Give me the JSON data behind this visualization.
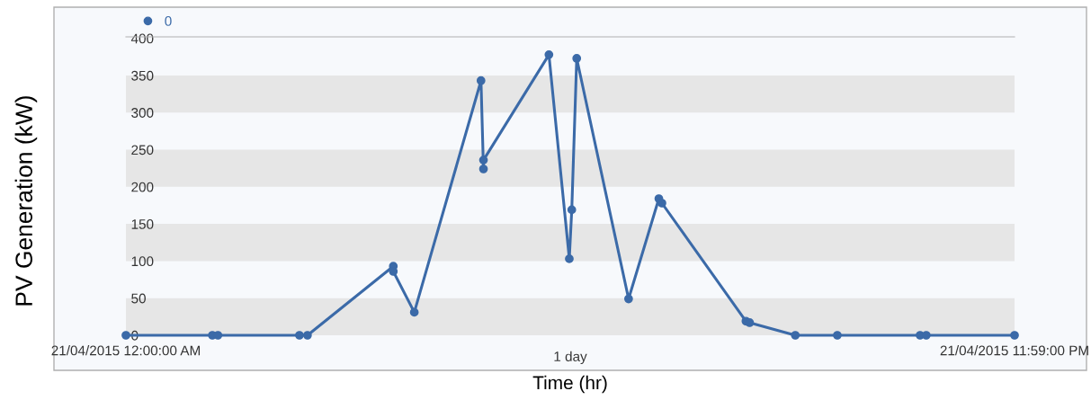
{
  "chart_data": {
    "type": "line",
    "xlabel": "Time (hr)",
    "ylabel": "PV Generation (kW)",
    "series": [
      {
        "name": "0",
        "color": "#3b6aa8",
        "x": [
          "2015-04-21T00:00",
          "2015-04-21T02:20",
          "2015-04-21T02:29",
          "2015-04-21T04:41",
          "2015-04-21T04:54",
          "2015-04-21T07:13",
          "2015-04-21T07:13",
          "2015-04-21T07:47",
          "2015-04-21T09:35",
          "2015-04-21T09:39",
          "2015-04-21T09:39",
          "2015-04-21T11:25",
          "2015-04-21T11:58",
          "2015-04-21T12:02",
          "2015-04-21T12:10",
          "2015-04-21T13:34",
          "2015-04-21T14:23",
          "2015-04-21T14:28",
          "2015-04-21T16:44",
          "2015-04-21T16:50",
          "2015-04-21T18:04",
          "2015-04-21T19:12",
          "2015-04-21T21:26",
          "2015-04-21T21:36",
          "2015-04-21T23:59"
        ],
        "values": [
          0,
          0,
          0,
          0,
          0,
          93,
          86,
          31,
          343,
          224,
          236,
          378,
          103,
          169,
          373,
          49,
          184,
          178,
          19,
          17,
          0,
          0,
          0,
          0,
          0
        ]
      }
    ],
    "xlim": [
      "2015-04-21T00:00",
      "2015-04-21T23:59"
    ],
    "xticks": [
      {
        "value": "2015-04-21T00:00",
        "label": "21/04/2015 12:00:00 AM"
      },
      {
        "value": "2015-04-21T23:59",
        "label": "21/04/2015 11:59:00 PM"
      }
    ],
    "annotations": [
      "1 day"
    ],
    "ylim": [
      0,
      402
    ],
    "yticks": [
      0,
      50,
      100,
      150,
      200,
      250,
      300,
      350,
      400
    ],
    "legend": "top left",
    "marker": "circle",
    "line_style": "solid"
  }
}
